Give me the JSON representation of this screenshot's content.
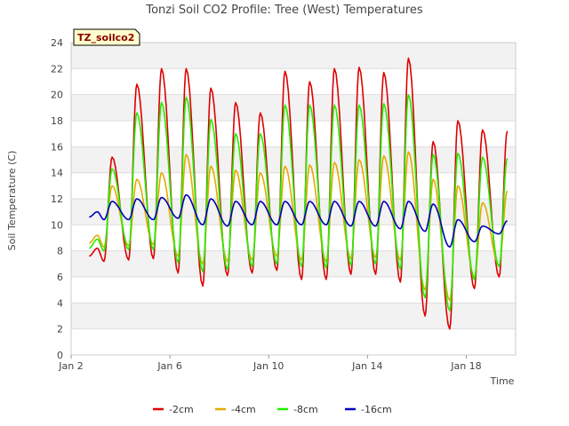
{
  "chart_data": {
    "type": "line",
    "title": "Tonzi Soil CO2 Profile: Tree (West) Temperatures",
    "xlabel": "Time",
    "ylabel": "Soil Temperature (C)",
    "badge": "TZ_soilco2",
    "xlim": [
      2.0,
      20.0
    ],
    "ylim": [
      0,
      24
    ],
    "yticks": [
      0,
      2,
      4,
      6,
      8,
      10,
      12,
      14,
      16,
      18,
      20,
      22,
      24
    ],
    "xticks": [
      {
        "value": 2,
        "label": "Jan 2"
      },
      {
        "value": 6,
        "label": "Jan 6"
      },
      {
        "value": 10,
        "label": "Jan 10"
      },
      {
        "value": 14,
        "label": "Jan 14"
      },
      {
        "value": 18,
        "label": "Jan 18"
      }
    ],
    "grid": true,
    "legend_position": "bottom",
    "days": [
      2.4,
      3.0,
      4.0,
      5.0,
      6.0,
      7.0,
      8.0,
      9.0,
      10.0,
      11.0,
      12.0,
      13.0,
      14.0,
      15.0,
      16.0,
      17.0,
      18.0,
      19.0
    ],
    "series": [
      {
        "name": "-2cm",
        "color": "#dd0000",
        "max": [
          8.2,
          15.2,
          20.8,
          22.0,
          22.0,
          20.5,
          19.4,
          18.6,
          21.8,
          21.0,
          22.0,
          22.1,
          21.7,
          22.8,
          16.4,
          18.0,
          17.3,
          17.2
        ],
        "min": [
          7.6,
          7.2,
          7.3,
          7.4,
          6.3,
          5.3,
          6.1,
          6.3,
          6.5,
          5.8,
          5.8,
          6.2,
          6.2,
          5.6,
          3.0,
          2.0,
          5.1,
          6.0
        ]
      },
      {
        "name": "-4cm",
        "color": "#e6a800",
        "max": [
          9.2,
          13.0,
          13.5,
          14.0,
          15.4,
          14.5,
          14.2,
          14.0,
          14.5,
          14.6,
          14.8,
          15.0,
          15.3,
          15.6,
          13.5,
          13.0,
          11.7,
          12.6
        ],
        "min": [
          8.6,
          8.3,
          8.4,
          8.5,
          7.6,
          7.0,
          7.2,
          7.3,
          7.6,
          7.3,
          7.2,
          7.4,
          7.5,
          7.3,
          5.0,
          4.2,
          6.0,
          6.9
        ]
      },
      {
        "name": "-8cm",
        "color": "#22ee00",
        "max": [
          8.9,
          14.3,
          18.6,
          19.4,
          19.8,
          18.1,
          17.0,
          17.0,
          19.2,
          19.2,
          19.2,
          19.2,
          19.3,
          20.0,
          15.4,
          15.5,
          15.2,
          15.1
        ],
        "min": [
          8.2,
          8.0,
          8.1,
          8.1,
          7.1,
          6.4,
          6.6,
          6.8,
          7.0,
          6.8,
          6.7,
          6.9,
          7.0,
          6.6,
          4.4,
          3.4,
          5.8,
          6.8
        ]
      },
      {
        "name": "-16cm",
        "color": "#0000bb",
        "max": [
          11.0,
          11.8,
          12.0,
          12.1,
          12.3,
          12.0,
          11.8,
          11.8,
          11.8,
          11.8,
          11.8,
          11.8,
          11.8,
          11.8,
          11.6,
          10.4,
          9.9,
          10.3
        ],
        "min": [
          10.6,
          10.4,
          10.4,
          10.4,
          10.5,
          10.0,
          9.9,
          10.0,
          10.0,
          10.0,
          10.0,
          9.9,
          9.9,
          9.7,
          9.5,
          8.3,
          8.7,
          9.3
        ]
      }
    ]
  }
}
